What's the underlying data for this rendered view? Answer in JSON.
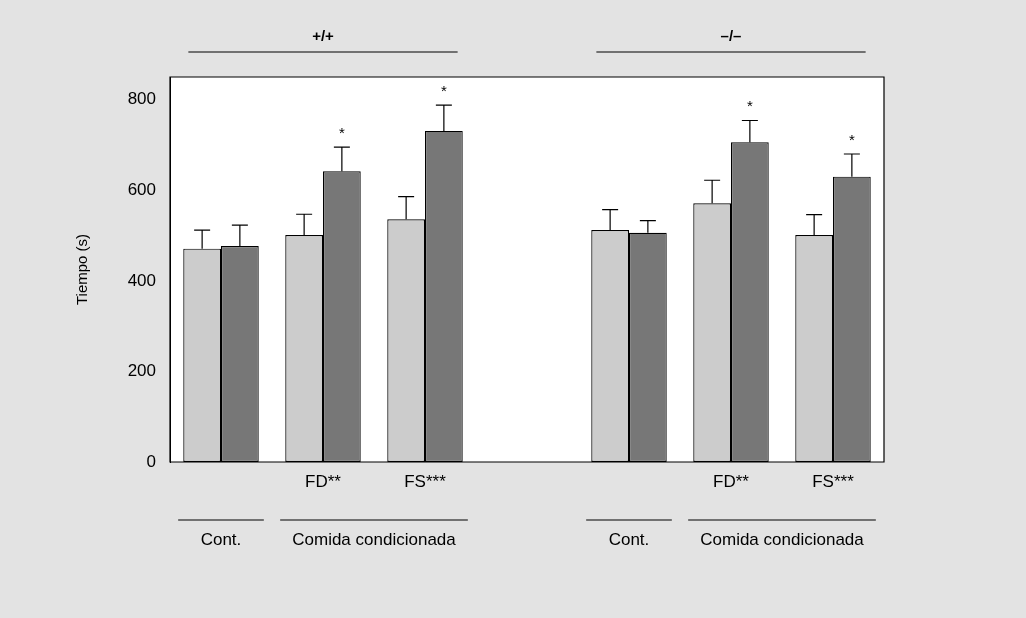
{
  "chart_data": {
    "type": "bar",
    "ylabel": "Tiempo (s)",
    "categories": [
      null,
      "FD**",
      "FS***",
      null,
      null,
      "FD**",
      "FS***"
    ],
    "series": [
      {
        "color": "#cccccc",
        "values": [
          471,
          501,
          536,
          null,
          512,
          571,
          501
        ],
        "errors": [
          [
            471,
            512
          ],
          [
            501,
            547
          ],
          [
            536,
            586
          ],
          null,
          [
            512,
            557
          ],
          [
            571,
            622
          ],
          [
            501,
            546
          ]
        ]
      },
      {
        "color": "#777777",
        "values": [
          477,
          642,
          731,
          null,
          506,
          706,
          630
        ],
        "errors": [
          [
            477,
            523
          ],
          [
            642,
            695
          ],
          [
            731,
            788
          ],
          null,
          [
            506,
            533
          ],
          [
            706,
            754
          ],
          [
            630,
            680
          ]
        ],
        "value_labels": [
          null,
          "*",
          "*",
          null,
          null,
          "*",
          "*"
        ]
      }
    ],
    "ylim": [
      0,
      850
    ],
    "yticks": [
      0,
      200,
      400,
      600,
      800
    ],
    "grid": false,
    "legend": false,
    "annotations": [
      "+/+",
      "–/–",
      "Cont.",
      "Comida condicionada",
      "Cont.",
      "Comida condicionada"
    ]
  }
}
